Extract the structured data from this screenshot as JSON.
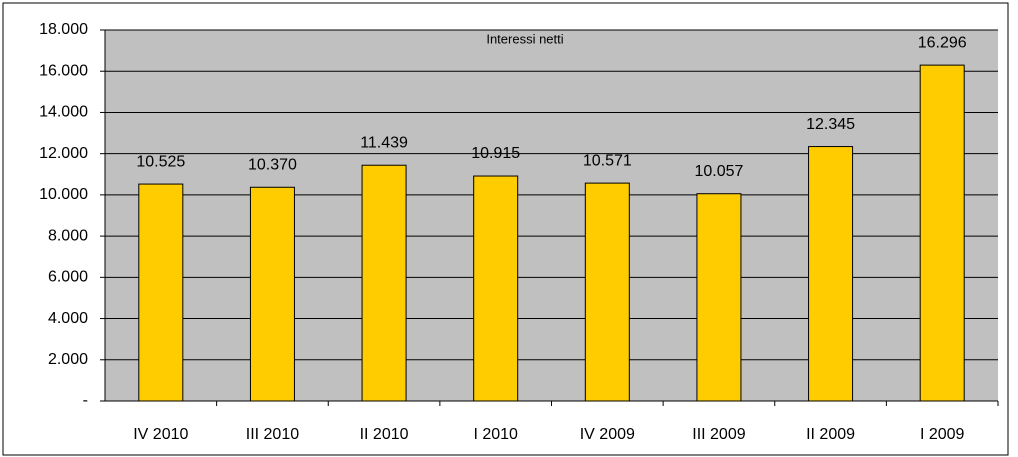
{
  "chart_data": {
    "type": "bar",
    "title": "Interessi netti",
    "categories": [
      "IV 2010",
      "III 2010",
      "II 2010",
      "I 2010",
      "IV 2009",
      "III 2009",
      "II 2009",
      "I 2009"
    ],
    "values": [
      10525,
      10370,
      11439,
      10915,
      10571,
      10057,
      12345,
      16296
    ],
    "value_labels": [
      "10.525",
      "10.370",
      "11.439",
      "10.915",
      "10.571",
      "10.057",
      "12.345",
      "16.296"
    ],
    "color": "#ffcc00",
    "ylim": [
      0,
      18000
    ],
    "yticks": [
      {
        "value": 0,
        "label": "-"
      },
      {
        "value": 2000,
        "label": "2.000"
      },
      {
        "value": 4000,
        "label": "4.000"
      },
      {
        "value": 6000,
        "label": "6.000"
      },
      {
        "value": 8000,
        "label": "8.000"
      },
      {
        "value": 10000,
        "label": "10.000"
      },
      {
        "value": 12000,
        "label": "12.000"
      },
      {
        "value": 14000,
        "label": "14.000"
      },
      {
        "value": 16000,
        "label": "16.000"
      },
      {
        "value": 18000,
        "label": "18.000"
      }
    ],
    "grid": true
  }
}
